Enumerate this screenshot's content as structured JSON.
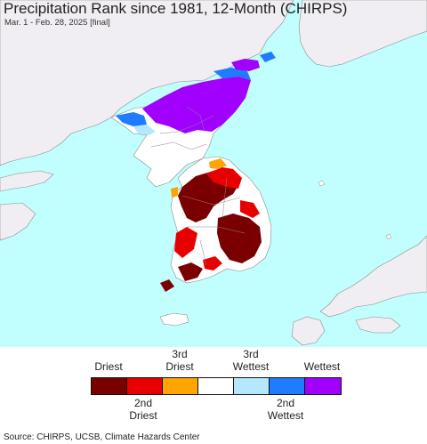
{
  "header": {
    "title": "Precipitation Rank since 1981, 12-Month (CHIRPS)",
    "subtitle": "Mar. 1 - Feb. 28, 2025 [final]"
  },
  "map": {
    "colors": {
      "sea": "#c1ffff",
      "land_outside": "#f0eef2",
      "normal": "#ffffff",
      "driest": "#7a0000",
      "second_driest": "#e80000",
      "third_driest": "#ffa500",
      "third_wettest": "#b5e8ff",
      "second_wettest": "#1f7bff",
      "wettest": "#a100ff"
    }
  },
  "legend": {
    "top_labels": [
      "Driest",
      "3rd\nDriest",
      "3rd\nWettest",
      "Wettest"
    ],
    "bottom_labels": [
      "2nd\nDriest",
      "2nd\nWettest"
    ],
    "swatches": [
      {
        "name": "driest",
        "color": "#7a0000"
      },
      {
        "name": "second-driest",
        "color": "#e80000"
      },
      {
        "name": "third-driest",
        "color": "#ffa500"
      },
      {
        "name": "normal",
        "color": "#ffffff"
      },
      {
        "name": "third-wettest",
        "color": "#b5e8ff"
      },
      {
        "name": "second-wettest",
        "color": "#1f7bff"
      },
      {
        "name": "wettest",
        "color": "#a100ff"
      }
    ]
  },
  "footer": {
    "source": "Source: CHIRPS, UCSB, Climate Hazards Center"
  }
}
